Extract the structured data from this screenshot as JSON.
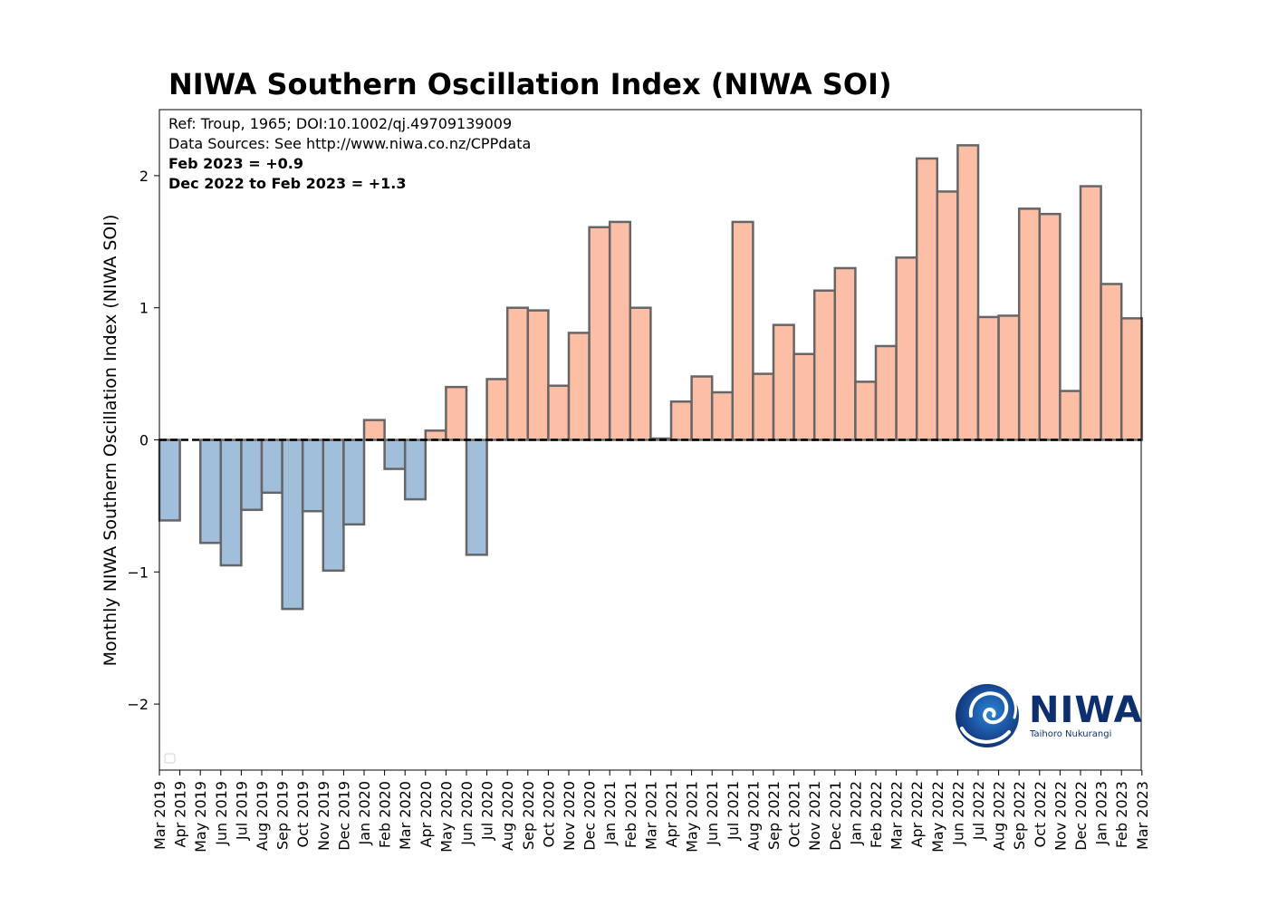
{
  "colors": {
    "positive_fill": "#fdbea6",
    "negative_fill": "#a1bedb",
    "bar_edge": "#666666",
    "zero_line": "#000000",
    "logo": "#0d2f6e"
  },
  "logo": {
    "name": "NIWA",
    "tagline": "Taihoro Nukurangi"
  },
  "chart_data": {
    "type": "bar",
    "title": "NIWA Southern Oscillation Index (NIWA SOI)",
    "ylabel": "Monthly NIWA Southern Oscillation Index (NIWA SOI)",
    "xlabel": "",
    "ylim": [
      -2.5,
      2.5
    ],
    "yticks": [
      -2,
      -1,
      0,
      1,
      2
    ],
    "ytick_labels": [
      "−2",
      "−1",
      "0",
      "1",
      "2"
    ],
    "grid": false,
    "legend": "empty box at bottom-left",
    "annotations": [
      {
        "text": "Ref: Troup, 1965; DOI:10.1002/qj.49709139009",
        "bold": false
      },
      {
        "text": "Data Sources: See http://www.niwa.co.nz/CPPdata",
        "bold": false
      },
      {
        "text": "Feb 2023 = +0.9",
        "bold": true
      },
      {
        "text": "Dec 2022 to Feb 2023 = +1.3",
        "bold": true
      }
    ],
    "tick_labels": [
      "Mar 2019",
      "Apr 2019",
      "May 2019",
      "Jun 2019",
      "Jul 2019",
      "Aug 2019",
      "Sep 2019",
      "Oct 2019",
      "Nov 2019",
      "Dec 2019",
      "Jan 2020",
      "Feb 2020",
      "Mar 2020",
      "Apr 2020",
      "May 2020",
      "Jun 2020",
      "Jul 2020",
      "Aug 2020",
      "Sep 2020",
      "Oct 2020",
      "Nov 2020",
      "Dec 2020",
      "Jan 2021",
      "Feb 2021",
      "Mar 2021",
      "Apr 2021",
      "May 2021",
      "Jun 2021",
      "Jul 2021",
      "Aug 2021",
      "Sep 2021",
      "Oct 2021",
      "Nov 2021",
      "Dec 2021",
      "Jan 2022",
      "Feb 2022",
      "Mar 2022",
      "Apr 2022",
      "May 2022",
      "Jun 2022",
      "Jul 2022",
      "Aug 2022",
      "Sep 2022",
      "Oct 2022",
      "Nov 2022",
      "Dec 2022",
      "Jan 2023",
      "Feb 2023",
      "Mar 2023"
    ],
    "categories": [
      "Mar 2019",
      "Apr 2019",
      "May 2019",
      "Jun 2019",
      "Jul 2019",
      "Aug 2019",
      "Sep 2019",
      "Oct 2019",
      "Nov 2019",
      "Dec 2019",
      "Jan 2020",
      "Feb 2020",
      "Mar 2020",
      "Apr 2020",
      "May 2020",
      "Jun 2020",
      "Jul 2020",
      "Aug 2020",
      "Sep 2020",
      "Oct 2020",
      "Nov 2020",
      "Dec 2020",
      "Jan 2021",
      "Feb 2021",
      "Mar 2021",
      "Apr 2021",
      "May 2021",
      "Jun 2021",
      "Jul 2021",
      "Aug 2021",
      "Sep 2021",
      "Oct 2021",
      "Nov 2021",
      "Dec 2021",
      "Jan 2022",
      "Feb 2022",
      "Mar 2022",
      "Apr 2022",
      "May 2022",
      "Jun 2022",
      "Jul 2022",
      "Aug 2022",
      "Sep 2022",
      "Oct 2022",
      "Nov 2022",
      "Dec 2022",
      "Jan 2023",
      "Feb 2023"
    ],
    "values": [
      -0.61,
      null,
      -0.78,
      -0.95,
      -0.53,
      -0.4,
      -1.28,
      -0.54,
      -0.99,
      -0.64,
      0.15,
      -0.22,
      -0.45,
      0.07,
      0.4,
      -0.87,
      0.46,
      1.0,
      0.98,
      0.41,
      0.81,
      1.61,
      1.65,
      1.0,
      0.01,
      0.29,
      0.48,
      0.36,
      1.65,
      0.5,
      0.87,
      0.65,
      1.13,
      1.3,
      0.44,
      0.71,
      1.38,
      2.13,
      1.88,
      2.23,
      0.93,
      0.94,
      1.75,
      1.71,
      0.37,
      1.92,
      1.18,
      0.92
    ]
  }
}
